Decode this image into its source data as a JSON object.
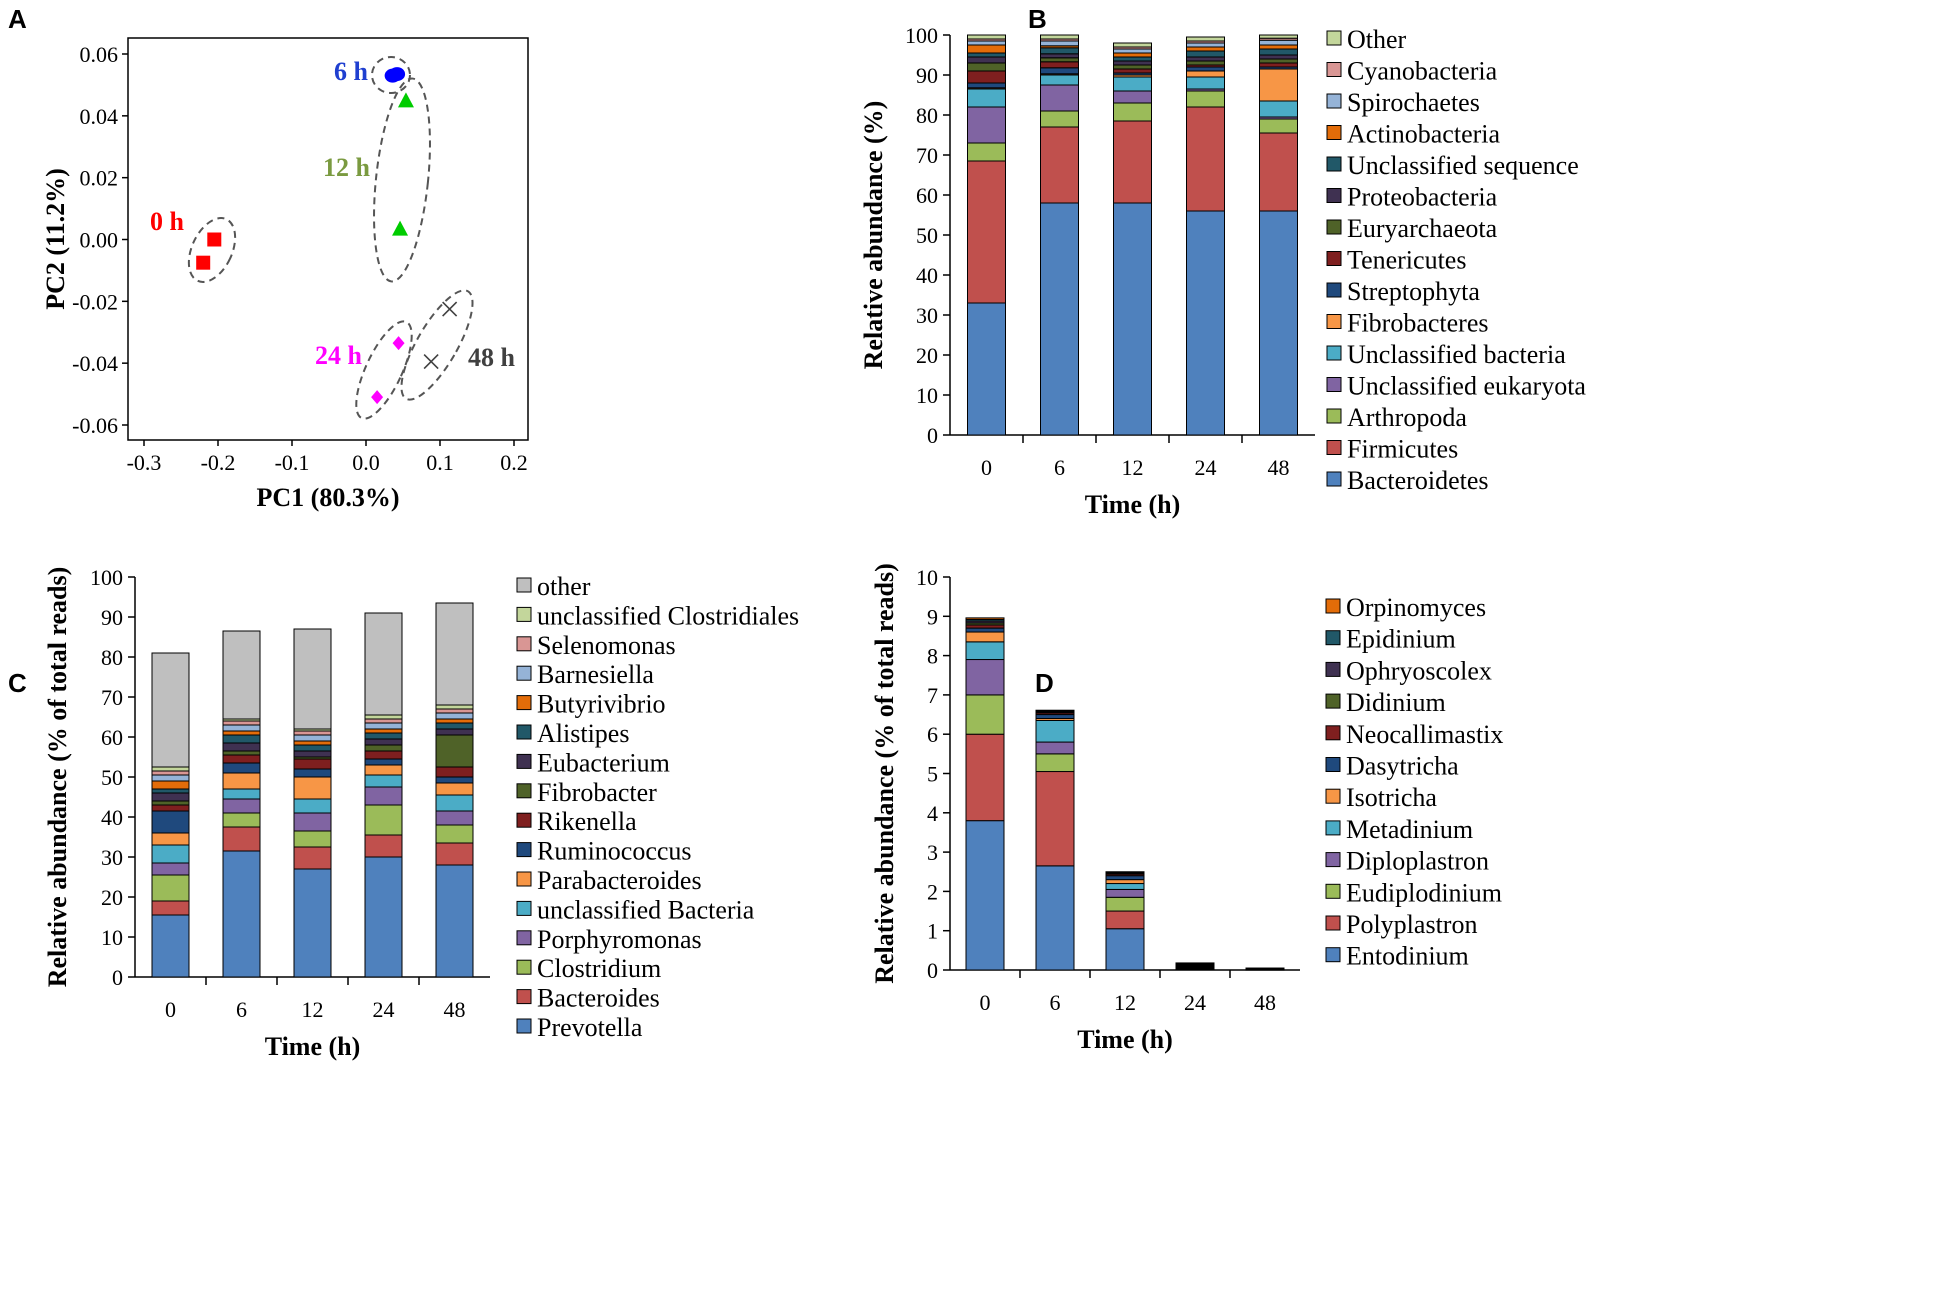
{
  "chart_data": [
    {
      "panel": "A",
      "type": "scatter",
      "xlabel": "PC1 (80.3%)",
      "ylabel": "PC2 (11.2%)",
      "xlim": [
        -0.3,
        0.2
      ],
      "ylim": [
        -0.06,
        0.06
      ],
      "xticks": [
        "-0.3",
        "-0.2",
        "-0.1",
        "0.0",
        "0.1",
        "0.2"
      ],
      "yticks": [
        "0.06",
        "0.04",
        "0.02",
        "0.00",
        "-0.02",
        "-0.04",
        "-0.06"
      ],
      "series": [
        {
          "name": "0 h",
          "marker": "square",
          "color": "#ff0000",
          "x": [
            -0.22,
            -0.205
          ],
          "y": [
            -0.0075,
            0.0
          ]
        },
        {
          "name": "6 h",
          "marker": "circle",
          "color": "#0000ff",
          "x": [
            0.036,
            0.042
          ],
          "y": [
            0.053,
            0.0535
          ]
        },
        {
          "name": "12 h",
          "marker": "triangle",
          "color": "#00cc00",
          "x": [
            0.054,
            0.046
          ],
          "y": [
            0.045,
            0.0035
          ]
        },
        {
          "name": "24 h",
          "marker": "diamond",
          "color": "#ff00ff",
          "x": [
            0.044,
            0.015
          ],
          "y": [
            -0.0335,
            -0.051
          ]
        },
        {
          "name": "48 h",
          "marker": "x",
          "color": "#404040",
          "x": [
            0.113,
            0.088
          ],
          "y": [
            -0.0225,
            -0.0395
          ]
        }
      ],
      "group_label_colors": [
        "#ff0000",
        "#1f3fd0",
        "#7a9a40",
        "#ff00ff",
        "#404040"
      ]
    },
    {
      "panel": "B",
      "type": "bar",
      "xlabel": "Time (h)",
      "ylabel": "Relative abundance (%)",
      "ylim": [
        0,
        100
      ],
      "yticks": [
        "0",
        "10",
        "20",
        "30",
        "40",
        "50",
        "60",
        "70",
        "80",
        "90",
        "100"
      ],
      "categories": [
        "0",
        "6",
        "12",
        "24",
        "48"
      ],
      "series": [
        {
          "name": "Bacteroidetes",
          "color": "#4f81bd",
          "values": [
            33,
            58,
            58,
            56,
            56
          ]
        },
        {
          "name": "Firmicutes",
          "color": "#c0504d",
          "values": [
            35.5,
            19,
            20.5,
            26,
            19.5
          ]
        },
        {
          "name": "Arthropoda",
          "color": "#9bbb59",
          "values": [
            4.5,
            4,
            4.5,
            4,
            3.5
          ]
        },
        {
          "name": "Unclassified eukaryota",
          "color": "#8064a2",
          "values": [
            9,
            6.5,
            3,
            0.5,
            0.5
          ]
        },
        {
          "name": "Unclassified bacteria",
          "color": "#4bacc6",
          "values": [
            4.5,
            2.5,
            3.5,
            3,
            4
          ]
        },
        {
          "name": "Fibrobacteres",
          "color": "#f79646",
          "values": [
            0.3,
            0.3,
            0.5,
            1.5,
            8
          ]
        },
        {
          "name": "Streptophyta",
          "color": "#1f497d",
          "values": [
            1.2,
            1.5,
            0.5,
            1,
            0.5
          ]
        },
        {
          "name": "Tenericutes",
          "color": "#7f1f1f",
          "values": [
            3,
            1.5,
            1,
            0.5,
            1
          ]
        },
        {
          "name": "Euryarchaeota",
          "color": "#4f6228",
          "values": [
            2,
            1,
            1,
            1,
            1
          ]
        },
        {
          "name": "Proteobacteria",
          "color": "#3f3151",
          "values": [
            1.5,
            1,
            1,
            1,
            1
          ]
        },
        {
          "name": "Unclassified sequence",
          "color": "#215868",
          "values": [
            1,
            1.5,
            1,
            1.5,
            1.5
          ]
        },
        {
          "name": "Actinobacteria",
          "color": "#e36c09",
          "values": [
            2,
            0.5,
            1,
            1,
            1
          ]
        },
        {
          "name": "Spirochaetes",
          "color": "#95b3d7",
          "values": [
            1,
            1.2,
            1,
            1,
            1.2
          ]
        },
        {
          "name": "Cyanobacteria",
          "color": "#d99694",
          "values": [
            0.5,
            0.5,
            0.5,
            0.5,
            0.5
          ]
        },
        {
          "name": "Other",
          "color": "#c3d69b",
          "values": [
            1,
            1,
            1,
            1,
            0.8
          ]
        }
      ]
    },
    {
      "panel": "C",
      "type": "bar",
      "xlabel": "Time (h)",
      "ylabel": "Relative abundance (% of total reads)",
      "ylim": [
        0,
        100
      ],
      "yticks": [
        "0",
        "10",
        "20",
        "30",
        "40",
        "50",
        "60",
        "70",
        "80",
        "90",
        "100"
      ],
      "categories": [
        "0",
        "6",
        "12",
        "24",
        "48"
      ],
      "series": [
        {
          "name": "Prevotella",
          "color": "#4f81bd",
          "values": [
            15.5,
            31.5,
            27,
            30,
            28
          ]
        },
        {
          "name": "Bacteroides",
          "color": "#c0504d",
          "values": [
            3.5,
            6,
            5.5,
            5.5,
            5.5
          ]
        },
        {
          "name": "Clostridium",
          "color": "#9bbb59",
          "values": [
            6.5,
            3.5,
            4,
            7.5,
            4.5
          ]
        },
        {
          "name": "Porphyromonas",
          "color": "#8064a2",
          "values": [
            3,
            3.5,
            4.5,
            4.5,
            3.5
          ]
        },
        {
          "name": "unclassified Bacteria",
          "color": "#4bacc6",
          "values": [
            4.5,
            2.5,
            3.5,
            3,
            4
          ]
        },
        {
          "name": "Parabacteroides",
          "color": "#f79646",
          "values": [
            3,
            4,
            5.5,
            2.5,
            3
          ]
        },
        {
          "name": "Ruminococcus",
          "color": "#1f497d",
          "values": [
            5.5,
            2.5,
            2,
            1.5,
            1.5
          ]
        },
        {
          "name": "Rikenella",
          "color": "#7f1f1f",
          "values": [
            1.5,
            2,
            2.5,
            2,
            2.5
          ]
        },
        {
          "name": "Fibrobacter",
          "color": "#4f6228",
          "values": [
            1,
            1,
            0.5,
            1.5,
            8
          ]
        },
        {
          "name": "Eubacterium",
          "color": "#3f3151",
          "values": [
            2,
            2,
            1.5,
            1.5,
            1.5
          ]
        },
        {
          "name": "Alistipes",
          "color": "#215868",
          "values": [
            1,
            2,
            1.5,
            1.5,
            1.5
          ]
        },
        {
          "name": "Butyrivibrio",
          "color": "#e36c09",
          "values": [
            2,
            1,
            1,
            1,
            1
          ]
        },
        {
          "name": "Barnesiella",
          "color": "#95b3d7",
          "values": [
            1.5,
            1.5,
            1.5,
            1.5,
            1.5
          ]
        },
        {
          "name": "Selenomonas",
          "color": "#d99694",
          "values": [
            1,
            1,
            1,
            1,
            1
          ]
        },
        {
          "name": "unclassified Clostridiales",
          "color": "#c3d69b",
          "values": [
            1,
            0.5,
            0.5,
            1,
            1
          ]
        },
        {
          "name": "other",
          "color": "#bfbfbf",
          "values": [
            28.5,
            22,
            25,
            25.5,
            25.5
          ]
        }
      ]
    },
    {
      "panel": "D",
      "type": "bar",
      "xlabel": "Time (h)",
      "ylabel": "Relative abundance (% of total reads)",
      "ylim": [
        0,
        10
      ],
      "yticks": [
        "0",
        "1",
        "2",
        "3",
        "4",
        "5",
        "6",
        "7",
        "8",
        "9",
        "10"
      ],
      "categories": [
        "0",
        "6",
        "12",
        "24",
        "48"
      ],
      "series": [
        {
          "name": "Entodinium",
          "color": "#4f81bd",
          "values": [
            3.8,
            2.65,
            1.05,
            0.02,
            0
          ]
        },
        {
          "name": "Polyplastron",
          "color": "#c0504d",
          "values": [
            2.2,
            2.4,
            0.45,
            0.02,
            0
          ]
        },
        {
          "name": "Eudiplodinium",
          "color": "#9bbb59",
          "values": [
            1.0,
            0.45,
            0.35,
            0.01,
            0
          ]
        },
        {
          "name": "Diploplastron",
          "color": "#8064a2",
          "values": [
            0.9,
            0.3,
            0.2,
            0.01,
            0
          ]
        },
        {
          "name": "Metadinium",
          "color": "#4bacc6",
          "values": [
            0.45,
            0.55,
            0.15,
            0.01,
            0
          ]
        },
        {
          "name": "Isotricha",
          "color": "#f79646",
          "values": [
            0.25,
            0.05,
            0.1,
            0.01,
            0
          ]
        },
        {
          "name": "Dasytricha",
          "color": "#1f497d",
          "values": [
            0.1,
            0.1,
            0.1,
            0.02,
            0
          ]
        },
        {
          "name": "Neocallimastix",
          "color": "#7f1f1f",
          "values": [
            0.08,
            0.04,
            0.04,
            0.02,
            0.01
          ]
        },
        {
          "name": "Didinium",
          "color": "#4f6228",
          "values": [
            0.05,
            0.02,
            0.02,
            0.02,
            0.01
          ]
        },
        {
          "name": "Ophryoscolex",
          "color": "#3f3151",
          "values": [
            0.05,
            0.02,
            0.02,
            0.02,
            0.01
          ]
        },
        {
          "name": "Epidinium",
          "color": "#215868",
          "values": [
            0.04,
            0.02,
            0.01,
            0.01,
            0.01
          ]
        },
        {
          "name": "Orpinomyces",
          "color": "#e36c09",
          "values": [
            0.04,
            0.01,
            0.01,
            0.01,
            0.01
          ]
        }
      ]
    }
  ],
  "panel_labels": [
    "A",
    "B",
    "C",
    "D"
  ]
}
